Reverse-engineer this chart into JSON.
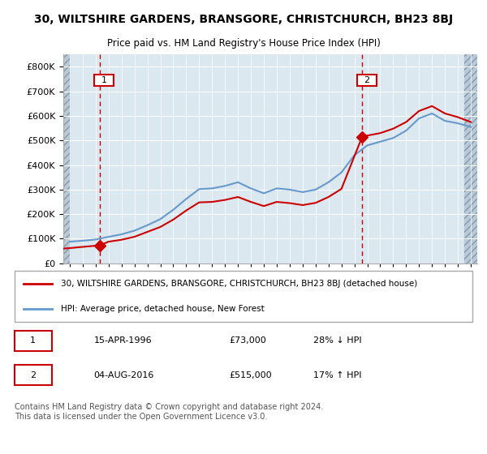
{
  "title": "30, WILTSHIRE GARDENS, BRANSGORE, CHRISTCHURCH, BH23 8BJ",
  "subtitle": "Price paid vs. HM Land Registry's House Price Index (HPI)",
  "legend_line1": "30, WILTSHIRE GARDENS, BRANSGORE, CHRISTCHURCH, BH23 8BJ (detached house)",
  "legend_line2": "HPI: Average price, detached house, New Forest",
  "footnote": "Contains HM Land Registry data © Crown copyright and database right 2024.\nThis data is licensed under the Open Government Licence v3.0.",
  "sale1_label": "1",
  "sale1_date": "15-APR-1996",
  "sale1_price": "£73,000",
  "sale1_hpi": "28% ↓ HPI",
  "sale2_label": "2",
  "sale2_date": "04-AUG-2016",
  "sale2_price": "£515,000",
  "sale2_hpi": "17% ↑ HPI",
  "sale1_year": 1996.3,
  "sale1_value": 73000,
  "sale2_year": 2016.6,
  "sale2_value": 515000,
  "color_red": "#cc0000",
  "color_blue": "#6699cc",
  "color_hatch": "#c8d8e8",
  "color_bg_main": "#dce8f0",
  "color_bg_hatch_left": "#c0ccd8",
  "ylim_max": 850000,
  "ylim_min": 0,
  "xlim_min": 1993.5,
  "xlim_max": 2025.5,
  "hpi_years": [
    1994,
    1995,
    1996,
    1997,
    1998,
    1999,
    2000,
    2001,
    2002,
    2003,
    2004,
    2005,
    2006,
    2007,
    2008,
    2009,
    2010,
    2011,
    2012,
    2013,
    2014,
    2015,
    2016,
    2017,
    2018,
    2019,
    2020,
    2021,
    2022,
    2023,
    2024,
    2025
  ],
  "hpi_values": [
    88000,
    92000,
    97000,
    108000,
    118000,
    133000,
    155000,
    180000,
    218000,
    262000,
    302000,
    305000,
    315000,
    330000,
    305000,
    285000,
    305000,
    300000,
    290000,
    300000,
    330000,
    370000,
    440000,
    480000,
    495000,
    510000,
    540000,
    590000,
    610000,
    580000,
    570000,
    555000
  ],
  "house_years": [
    1993.5,
    1994,
    1995,
    1996.3,
    1997,
    1998,
    1999,
    2000,
    2001,
    2002,
    2003,
    2004,
    2005,
    2006,
    2007,
    2008,
    2009,
    2010,
    2011,
    2012,
    2013,
    2014,
    2015,
    2016.6,
    2017,
    2018,
    2019,
    2020,
    2021,
    2022,
    2023,
    2024,
    2025
  ],
  "house_values": [
    60000,
    62000,
    67000,
    73000,
    88000,
    96000,
    108000,
    128000,
    148000,
    178000,
    215000,
    248000,
    250000,
    258000,
    270000,
    250000,
    233000,
    250000,
    245000,
    237000,
    246000,
    270000,
    303000,
    515000,
    520000,
    530000,
    548000,
    575000,
    620000,
    640000,
    610000,
    595000,
    575000
  ]
}
